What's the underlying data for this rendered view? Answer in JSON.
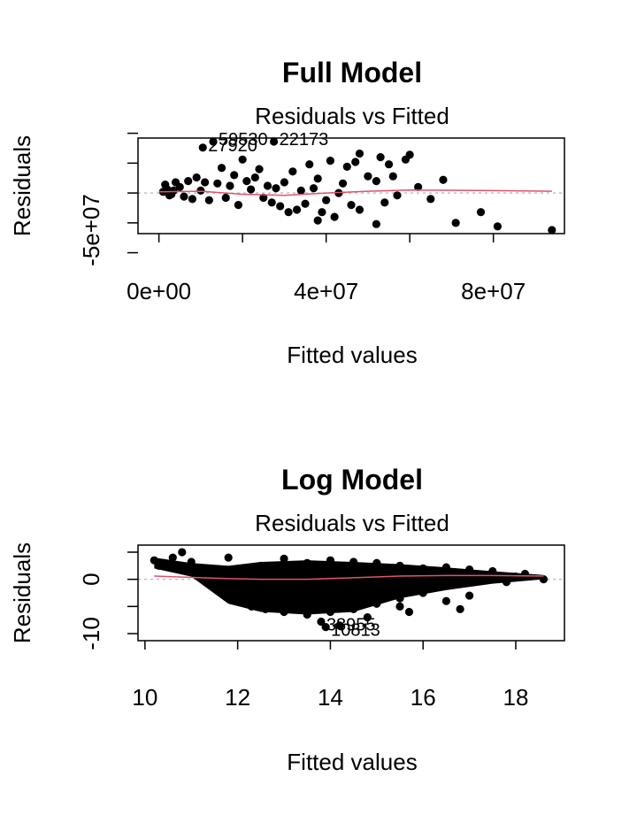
{
  "chart_data": [
    {
      "type": "scatter",
      "title": "Full Model",
      "subtitle": "Residuals vs Fitted",
      "xlabel": "Fitted values",
      "ylabel": "Residuals",
      "xlim": [
        -5000000,
        97000000
      ],
      "ylim": [
        -34000000,
        46000000
      ],
      "x_ticks": [
        0,
        20000000,
        40000000,
        60000000,
        80000000
      ],
      "x_tick_labels": [
        "0e+00",
        "",
        "4e+07",
        "",
        "8e+07"
      ],
      "y_ticks": [
        -50000000,
        0,
        50000000
      ],
      "y_tick_labels": [
        "-5e+07",
        "",
        ""
      ],
      "y_minor_ticks": [
        -50000000,
        -25000000,
        0,
        25000000,
        50000000
      ],
      "smooth_color": "#DF536B",
      "zero_line_color": "#BEBEBE",
      "labeled_points": [
        {
          "label": "59530",
          "x": 13000000,
          "y": 47000000
        },
        {
          "label": "22173",
          "x": 27500000,
          "y": 45000000
        },
        {
          "label": "27920",
          "x": 10500000,
          "y": 38000000
        }
      ],
      "points": [
        [
          13000000,
          47000000
        ],
        [
          27500000,
          45000000
        ],
        [
          10500000,
          38000000
        ],
        [
          48000000,
          33000000
        ],
        [
          53000000,
          30000000
        ],
        [
          60000000,
          32000000
        ],
        [
          59000000,
          28000000
        ],
        [
          41000000,
          27000000
        ],
        [
          45000000,
          22000000
        ],
        [
          36000000,
          24000000
        ],
        [
          20000000,
          28000000
        ],
        [
          32000000,
          18000000
        ],
        [
          24000000,
          20000000
        ],
        [
          15000000,
          21000000
        ],
        [
          55000000,
          24000000
        ],
        [
          50000000,
          14000000
        ],
        [
          68000000,
          11000000
        ],
        [
          62000000,
          5000000
        ],
        [
          52000000,
          10000000
        ],
        [
          38000000,
          12000000
        ],
        [
          30000000,
          9000000
        ],
        [
          44000000,
          8000000
        ],
        [
          26000000,
          6000000
        ],
        [
          18000000,
          15000000
        ],
        [
          9000000,
          13000000
        ],
        [
          7000000,
          10000000
        ],
        [
          4000000,
          9000000
        ],
        [
          1500000,
          7000000
        ],
        [
          22000000,
          3000000
        ],
        [
          34000000,
          2000000
        ],
        [
          57000000,
          -2000000
        ],
        [
          65000000,
          -5000000
        ],
        [
          71000000,
          -25000000
        ],
        [
          77000000,
          -16000000
        ],
        [
          81000000,
          -28000000
        ],
        [
          94000000,
          -33000000
        ],
        [
          52000000,
          -26000000
        ],
        [
          42000000,
          -20000000
        ],
        [
          38000000,
          -23000000
        ],
        [
          48000000,
          -14000000
        ],
        [
          33000000,
          -14000000
        ],
        [
          27000000,
          -8000000
        ],
        [
          19000000,
          -10000000
        ],
        [
          12000000,
          -6000000
        ],
        [
          6000000,
          -3000000
        ],
        [
          3000000,
          -1000000
        ],
        [
          25000000,
          -4000000
        ],
        [
          35000000,
          -9000000
        ],
        [
          40000000,
          -6000000
        ],
        [
          46000000,
          -10000000
        ],
        [
          31000000,
          -16000000
        ],
        [
          29000000,
          -11000000
        ],
        [
          16000000,
          -4000000
        ],
        [
          10000000,
          2000000
        ],
        [
          8000000,
          -5000000
        ],
        [
          2000000,
          3000000
        ],
        [
          5000000,
          5000000
        ],
        [
          14000000,
          8000000
        ],
        [
          21000000,
          10000000
        ],
        [
          37000000,
          4000000
        ],
        [
          43000000,
          0
        ],
        [
          56000000,
          14000000
        ],
        [
          47000000,
          26000000
        ],
        [
          23000000,
          13000000
        ],
        [
          17000000,
          6000000
        ],
        [
          11000000,
          9000000
        ],
        [
          39000000,
          -16000000
        ],
        [
          54000000,
          -8000000
        ],
        [
          28000000,
          4000000
        ],
        [
          1000000,
          1000000
        ],
        [
          2500000,
          -2000000
        ],
        [
          3500000,
          2000000
        ]
      ],
      "smooth": [
        [
          0,
          1000000
        ],
        [
          10000000,
          1500000
        ],
        [
          20000000,
          -1000000
        ],
        [
          30000000,
          -2000000
        ],
        [
          40000000,
          0
        ],
        [
          50000000,
          1500000
        ],
        [
          60000000,
          2500000
        ],
        [
          80000000,
          2000000
        ],
        [
          94000000,
          1500000
        ]
      ]
    },
    {
      "type": "scatter",
      "title": "Log Model",
      "subtitle": "Residuals vs Fitted",
      "xlabel": "Fitted values",
      "ylabel": "Residuals",
      "xlim": [
        9.85,
        19.05
      ],
      "ylim": [
        -11.3,
        6.3
      ],
      "x_ticks": [
        10,
        12,
        14,
        16,
        18
      ],
      "x_tick_labels": [
        "10",
        "12",
        "14",
        "16",
        "18"
      ],
      "y_ticks": [
        -10,
        0
      ],
      "y_tick_labels": [
        "-10",
        "0"
      ],
      "y_minor_ticks": [
        -10,
        -5,
        0,
        5
      ],
      "smooth_color": "#DF536B",
      "zero_line_color": "#BEBEBE",
      "labeled_points": [
        {
          "label": "38955",
          "x": 13.8,
          "y": -7.8
        },
        {
          "label": "10813",
          "x": 13.9,
          "y": -8.8
        }
      ],
      "points": [
        [
          10.2,
          3.5
        ],
        [
          10.4,
          3.0
        ],
        [
          10.6,
          4.0
        ],
        [
          10.8,
          5.0
        ],
        [
          10.3,
          2.5
        ],
        [
          11.0,
          3.2
        ],
        [
          11.2,
          2.0
        ],
        [
          11.5,
          1.5
        ],
        [
          11.8,
          4.0
        ],
        [
          12.5,
          2.5
        ],
        [
          13.0,
          3.8
        ],
        [
          13.5,
          3.0
        ],
        [
          14.0,
          3.5
        ],
        [
          14.5,
          3.2
        ],
        [
          15.0,
          3.0
        ],
        [
          15.5,
          2.5
        ],
        [
          16.0,
          2.0
        ],
        [
          16.5,
          2.2
        ],
        [
          17.0,
          1.8
        ],
        [
          17.5,
          1.5
        ],
        [
          18.0,
          0.5
        ],
        [
          18.6,
          0.0
        ],
        [
          18.2,
          1.0
        ],
        [
          17.8,
          -0.5
        ],
        [
          11.8,
          -2.5
        ],
        [
          12.0,
          -4.0
        ],
        [
          12.3,
          -5.0
        ],
        [
          12.6,
          -5.5
        ],
        [
          13.0,
          -6.0
        ],
        [
          13.5,
          -6.5
        ],
        [
          14.0,
          -6.0
        ],
        [
          14.5,
          -5.5
        ],
        [
          15.0,
          -4.5
        ],
        [
          15.5,
          -3.5
        ],
        [
          16.0,
          -2.5
        ],
        [
          16.5,
          -4.0
        ],
        [
          17.0,
          -3.0
        ],
        [
          16.8,
          -5.5
        ],
        [
          15.7,
          -6.0
        ],
        [
          15.5,
          -5.0
        ],
        [
          14.8,
          -7.0
        ],
        [
          14.2,
          -8.5
        ],
        [
          13.8,
          -7.8
        ],
        [
          13.9,
          -8.8
        ],
        [
          12.0,
          1.0
        ],
        [
          12.5,
          0.5
        ],
        [
          13.0,
          1.5
        ],
        [
          13.5,
          0.0
        ],
        [
          14.0,
          -1.0
        ],
        [
          14.5,
          0.5
        ],
        [
          15.0,
          -1.5
        ],
        [
          15.5,
          1.0
        ],
        [
          16.0,
          0.5
        ],
        [
          16.5,
          -0.5
        ],
        [
          17.0,
          0.5
        ],
        [
          12.8,
          -2.0
        ],
        [
          13.2,
          -3.0
        ],
        [
          13.7,
          -4.0
        ],
        [
          14.3,
          -3.5
        ],
        [
          14.7,
          -2.5
        ],
        [
          15.2,
          -2.0
        ],
        [
          11.5,
          -1.0
        ],
        [
          11.3,
          0.5
        ],
        [
          12.2,
          -1.5
        ],
        [
          13.3,
          2.0
        ],
        [
          14.8,
          1.8
        ],
        [
          16.3,
          1.2
        ],
        [
          17.3,
          0.8
        ],
        [
          12.6,
          -3.5
        ]
      ],
      "bands": [
        [
          10.2,
          2.0,
          4.0
        ],
        [
          11.0,
          0.5,
          3.0
        ],
        [
          11.8,
          -4.5,
          2.5
        ],
        [
          12.5,
          -6.0,
          3.2
        ],
        [
          13.5,
          -6.5,
          3.5
        ],
        [
          14.5,
          -6.0,
          3.2
        ],
        [
          15.5,
          -3.5,
          2.8
        ],
        [
          16.5,
          -2.0,
          2.2
        ],
        [
          17.5,
          -0.8,
          1.5
        ],
        [
          18.6,
          0.0,
          0.8
        ]
      ],
      "smooth": [
        [
          10.2,
          0.6
        ],
        [
          11.5,
          0.2
        ],
        [
          12.5,
          0.0
        ],
        [
          13.5,
          0.0
        ],
        [
          14.5,
          0.3
        ],
        [
          15.5,
          0.6
        ],
        [
          16.5,
          0.7
        ],
        [
          17.5,
          0.7
        ],
        [
          18.6,
          0.6
        ]
      ]
    }
  ]
}
